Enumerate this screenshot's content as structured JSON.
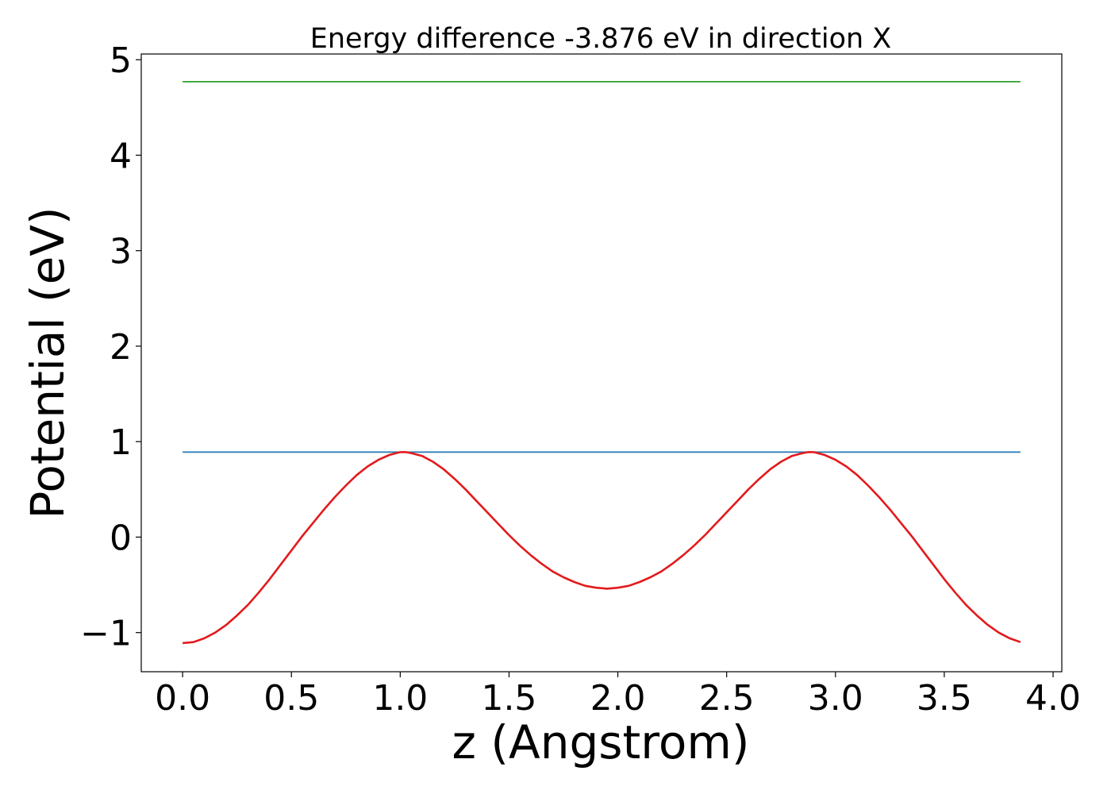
{
  "chart_data": {
    "type": "line",
    "title": "Energy difference -3.876 eV in direction X",
    "xlabel": "z (Angstrom)",
    "ylabel": "Potential (eV)",
    "xlim": [
      -0.19,
      4.04
    ],
    "ylim": [
      -1.41,
      5.06
    ],
    "xticks": [
      0.0,
      0.5,
      1.0,
      1.5,
      2.0,
      2.5,
      3.0,
      3.5,
      4.0
    ],
    "xtick_labels": [
      "0.0",
      "0.5",
      "1.0",
      "1.5",
      "2.0",
      "2.5",
      "3.0",
      "3.5",
      "4.0"
    ],
    "yticks": [
      -1,
      0,
      1,
      2,
      3,
      4,
      5
    ],
    "ytick_labels": [
      "−1",
      "0",
      "1",
      "2",
      "3",
      "4",
      "5"
    ],
    "grid": false,
    "legend": "none",
    "series": [
      {
        "color": "#2ca02c",
        "style": "flat",
        "x": [
          0.0,
          3.85
        ],
        "y": [
          4.77,
          4.77
        ]
      },
      {
        "color": "#1f77b4",
        "style": "flat",
        "x": [
          0.0,
          3.85
        ],
        "y": [
          0.89,
          0.89
        ]
      },
      {
        "color": "#e31a1c",
        "style": "curve",
        "x": [
          0.0,
          0.05,
          0.1,
          0.15,
          0.2,
          0.25,
          0.3,
          0.35,
          0.4,
          0.45,
          0.5,
          0.55,
          0.6,
          0.65,
          0.7,
          0.75,
          0.8,
          0.85,
          0.9,
          0.95,
          1.0,
          1.025,
          1.05,
          1.1,
          1.15,
          1.2,
          1.25,
          1.3,
          1.35,
          1.4,
          1.45,
          1.5,
          1.55,
          1.6,
          1.65,
          1.7,
          1.75,
          1.8,
          1.85,
          1.9,
          1.95,
          2.0,
          2.05,
          2.1,
          2.15,
          2.2,
          2.25,
          2.3,
          2.35,
          2.4,
          2.45,
          2.5,
          2.55,
          2.6,
          2.65,
          2.7,
          2.75,
          2.8,
          2.85,
          2.875,
          2.9,
          2.95,
          3.0,
          3.05,
          3.1,
          3.15,
          3.2,
          3.25,
          3.3,
          3.35,
          3.4,
          3.45,
          3.5,
          3.55,
          3.6,
          3.65,
          3.7,
          3.75,
          3.8,
          3.85
        ],
        "y": [
          -1.11,
          -1.1,
          -1.06,
          -1.0,
          -0.92,
          -0.82,
          -0.71,
          -0.58,
          -0.44,
          -0.29,
          -0.14,
          0.01,
          0.15,
          0.29,
          0.42,
          0.54,
          0.65,
          0.74,
          0.81,
          0.86,
          0.89,
          0.89,
          0.88,
          0.85,
          0.79,
          0.71,
          0.61,
          0.5,
          0.38,
          0.26,
          0.14,
          0.02,
          -0.09,
          -0.19,
          -0.28,
          -0.36,
          -0.42,
          -0.47,
          -0.51,
          -0.53,
          -0.54,
          -0.53,
          -0.51,
          -0.47,
          -0.42,
          -0.36,
          -0.28,
          -0.19,
          -0.09,
          0.02,
          0.14,
          0.26,
          0.38,
          0.5,
          0.61,
          0.71,
          0.79,
          0.85,
          0.88,
          0.89,
          0.89,
          0.86,
          0.81,
          0.74,
          0.65,
          0.54,
          0.42,
          0.29,
          0.15,
          0.01,
          -0.14,
          -0.29,
          -0.44,
          -0.58,
          -0.71,
          -0.82,
          -0.92,
          -1.0,
          -1.06,
          -1.1
        ]
      }
    ]
  }
}
